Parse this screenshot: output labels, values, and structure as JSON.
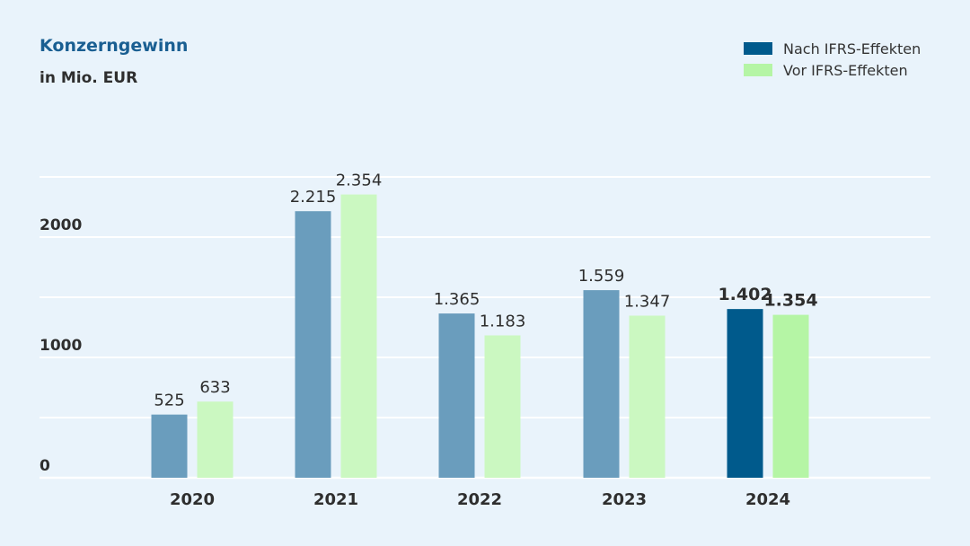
{
  "header": {
    "title": "Konzerngewinn",
    "subtitle": "in Mio. EUR"
  },
  "legend": [
    {
      "label": "Nach IFRS-Effekten",
      "color": "#005a8c"
    },
    {
      "label": "Vor IFRS-Effekten",
      "color": "#b5f5a5"
    }
  ],
  "colors": {
    "background": "#e9f3fb",
    "grid": "#ffffff",
    "series1_past": "#6a9dbd",
    "series2_past": "#cbf8c1",
    "series1_current": "#005a8c",
    "series2_current": "#b5f5a5",
    "text": "#2e2e2e"
  },
  "chart_data": {
    "type": "bar",
    "categories": [
      "2020",
      "2021",
      "2022",
      "2023",
      "2024"
    ],
    "series": [
      {
        "name": "Nach IFRS-Effekten",
        "values": [
          525,
          2215,
          1365,
          1559,
          1402
        ],
        "labels": [
          "525",
          "2.215",
          "1.365",
          "1.559",
          "1.402"
        ]
      },
      {
        "name": "Vor IFRS-Effekten",
        "values": [
          633,
          2354,
          1183,
          1347,
          1354
        ],
        "labels": [
          "633",
          "2.354",
          "1.183",
          "1.347",
          "1.354"
        ]
      }
    ],
    "highlight_category": "2024",
    "ylim": [
      0,
      2500
    ],
    "yticks": [
      0,
      1000,
      2000
    ],
    "ytick_labels": [
      "0",
      "1000",
      "2000"
    ],
    "grid": true,
    "legend_position": "top-right"
  }
}
